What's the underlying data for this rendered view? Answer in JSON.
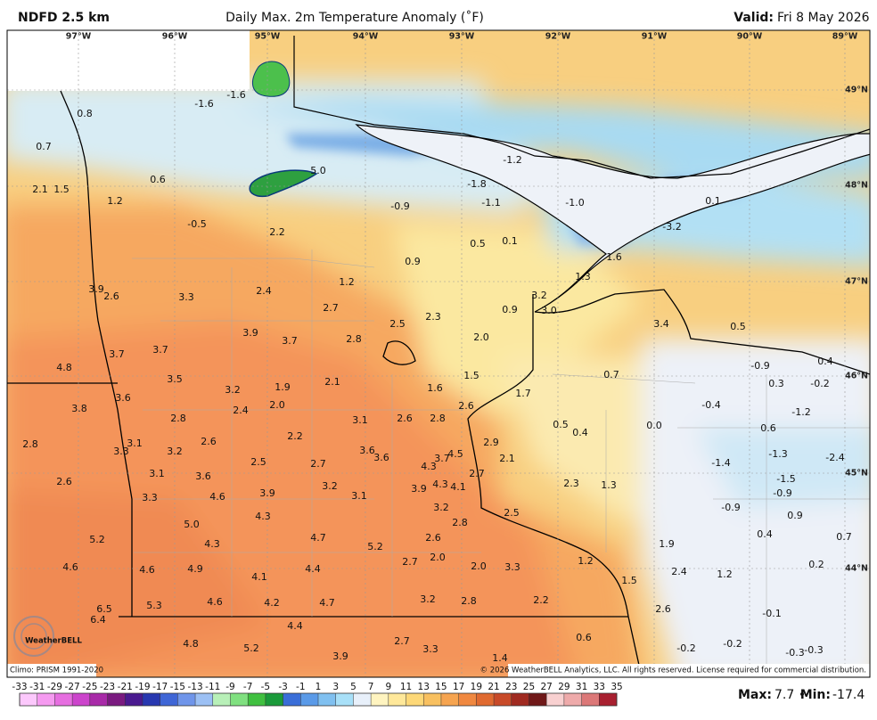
{
  "header": {
    "title_left": "NDFD 2.5 km",
    "title_center": "Daily Max. 2m Temperature Anomaly (˚F)",
    "valid_label": "Valid:",
    "valid_date": "Fri 8 May 2026"
  },
  "map": {
    "lon_labels": [
      "97°W",
      "96°W",
      "95°W",
      "94°W",
      "93°W",
      "92°W",
      "91°W",
      "90°W",
      "89°W"
    ],
    "lat_labels": [
      "49°N",
      "48°N",
      "47°N",
      "46°N",
      "45°N",
      "44°N"
    ],
    "values": [
      "-1.6",
      "0.8",
      "-1.6",
      "0.7",
      "5.0",
      "-1.2",
      "-1.8",
      "0.6",
      "2.1",
      "1.5",
      "1.2",
      "-0.9",
      "-1.1",
      "-1.0",
      "0.1",
      "-0.5",
      "2.2",
      "-3.2",
      "0.5",
      "0.1",
      "0.9",
      "1.6",
      "1.3",
      "1.2",
      "3.9",
      "2.6",
      "3.3",
      "2.4",
      "3.2",
      "2.7",
      "0.9",
      "3.0",
      "2.5",
      "2.3",
      "3.4",
      "0.5",
      "3.9",
      "3.7",
      "2.8",
      "2.0",
      "3.7",
      "3.7",
      "4.8",
      "1.5",
      "0.7",
      "-0.9",
      "0.4",
      "3.5",
      "3.2",
      "1.9",
      "2.1",
      "1.6",
      "1.7",
      "0.3",
      "-0.2",
      "3.6",
      "3.8",
      "2.4",
      "2.0",
      "2.6",
      "-0.4",
      "-1.2",
      "2.8",
      "3.1",
      "2.6",
      "2.8",
      "0.5",
      "0.4",
      "0.0",
      "0.6",
      "2.8",
      "3.1",
      "3.3",
      "2.6",
      "2.2",
      "2.9",
      "3.2",
      "3.6",
      "3.6",
      "3.7",
      "2.1",
      "-1.3",
      "-2.4",
      "2.5",
      "2.7",
      "4.3",
      "4.5",
      "-1.4",
      "3.1",
      "3.6",
      "2.7",
      "2.6",
      "3.2",
      "4.3",
      "4.1",
      "2.3",
      "1.3",
      "-1.5",
      "3.3",
      "4.6",
      "3.9",
      "3.1",
      "3.9",
      "-0.9",
      "3.2",
      "2.5",
      "-0.9",
      "0.9",
      "4.3",
      "2.8",
      "5.0",
      "2.6",
      "0.4",
      "0.7",
      "5.2",
      "4.7",
      "5.2",
      "1.9",
      "4.3",
      "2.7",
      "2.0",
      "1.2",
      "4.6",
      "4.6",
      "4.9",
      "4.4",
      "2.0",
      "3.3",
      "2.4",
      "1.2",
      "0.2",
      "4.1",
      "1.5",
      "5.3",
      "4.6",
      "4.2",
      "4.7",
      "3.2",
      "2.8",
      "2.2",
      "6.5",
      "2.6",
      "-0.1",
      "6.4",
      "4.4",
      "4.8",
      "5.2",
      "2.7",
      "3.3",
      "0.6",
      "-0.2",
      "-0.2",
      "-0.3",
      "-0.3",
      "3.9",
      "1.4"
    ]
  },
  "colorbar": {
    "ticks": [
      -33,
      -31,
      -29,
      -27,
      -25,
      -23,
      -21,
      -19,
      -17,
      -15,
      -13,
      -11,
      -9,
      -7,
      -5,
      -3,
      -1,
      1,
      3,
      5,
      7,
      9,
      11,
      13,
      15,
      17,
      19,
      21,
      23,
      25,
      27,
      29,
      31,
      33,
      35
    ],
    "colors": [
      "#fcc8fc",
      "#f59af0",
      "#e66ee0",
      "#cc44cc",
      "#a82aa8",
      "#7a1a80",
      "#4a1a90",
      "#2838b0",
      "#3f66d6",
      "#6f95ea",
      "#9cc0f4",
      "#b8f0b8",
      "#80e080",
      "#40c040",
      "#1a9a3a",
      "#3a6ed8",
      "#5a9ae8",
      "#80c0f0",
      "#a8e0f8",
      "#e8f0fa",
      "#fff4c0",
      "#ffe89a",
      "#fdd878",
      "#f8c060",
      "#f6a450",
      "#f08840",
      "#e06a30",
      "#c84a28",
      "#a02a20",
      "#701818",
      "#f8d0d0",
      "#eeaaaa",
      "#dc7878",
      "#a82030"
    ]
  },
  "logo": "WeatherBELL",
  "footer": {
    "climo": "Climo: PRISM 1991-2020",
    "copyright": "© 2026 WeatherBELL Analytics, LLC. All rights reserved. License required for commercial distribution."
  },
  "stats": {
    "max_label": "Max:",
    "max_value": "7.7",
    "separator": "•",
    "min_label": "Min:",
    "min_value": "-17.4"
  }
}
